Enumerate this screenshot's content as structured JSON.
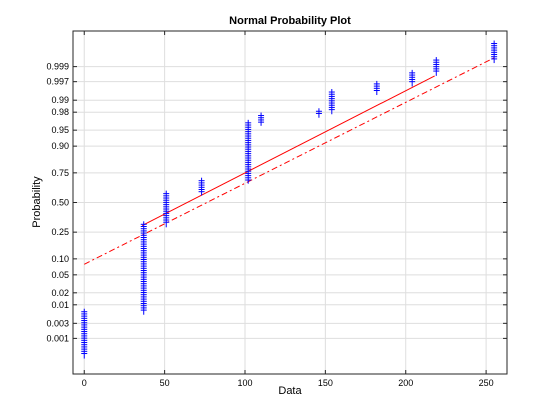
{
  "chart_data": {
    "type": "scatter",
    "title": "Normal Probability Plot",
    "xlabel": "Data",
    "ylabel": "Probability",
    "xlim": [
      -7,
      263
    ],
    "ylim": [
      -3.9,
      3.9
    ],
    "x_ticks": [
      0,
      50,
      100,
      150,
      200,
      250
    ],
    "x_tick_labels": [
      "0",
      "50",
      "100",
      "150",
      "200",
      "250"
    ],
    "y_tick_labels": [
      "0.001",
      "0.003",
      "0.01",
      "0.02",
      "0.05",
      "0.10",
      "0.25",
      "0.50",
      "0.75",
      "0.90",
      "0.95",
      "0.98",
      "0.99",
      "0.997",
      "0.999"
    ],
    "y_tick_probabilities": [
      0.001,
      0.003,
      0.01,
      0.02,
      0.05,
      0.1,
      0.25,
      0.5,
      0.75,
      0.9,
      0.95,
      0.98,
      0.99,
      0.997,
      0.999
    ],
    "grid": true,
    "marker": "+",
    "marker_color": "#0000ff",
    "line_color": "#ff0000",
    "reference_line": {
      "solid_segment": [
        [
          36,
          0.3
        ],
        [
          218,
          0.998
        ]
      ],
      "dashdot_segment": [
        [
          0,
          0.08
        ],
        [
          255,
          0.9995
        ]
      ]
    },
    "groups": [
      {
        "x": 0,
        "p_min": 0.00025,
        "p_max": 0.0065
      },
      {
        "x": 37,
        "p_min": 0.0065,
        "p_max": 0.31
      },
      {
        "x": 51,
        "p_min": 0.31,
        "p_max": 0.58
      },
      {
        "x": 73,
        "p_min": 0.59,
        "p_max": 0.69
      },
      {
        "x": 102,
        "p_min": 0.69,
        "p_max": 0.965
      },
      {
        "x": 110,
        "p_min": 0.965,
        "p_max": 0.976
      },
      {
        "x": 146,
        "p_min": 0.977,
        "p_max": 0.981
      },
      {
        "x": 154,
        "p_min": 0.981,
        "p_max": 0.994
      },
      {
        "x": 182,
        "p_min": 0.994,
        "p_max": 0.9965
      },
      {
        "x": 204,
        "p_min": 0.9966,
        "p_max": 0.9984
      },
      {
        "x": 219,
        "p_min": 0.9984,
        "p_max": 0.9994
      },
      {
        "x": 255,
        "p_min": 0.9994,
        "p_max": 0.99985
      }
    ]
  }
}
